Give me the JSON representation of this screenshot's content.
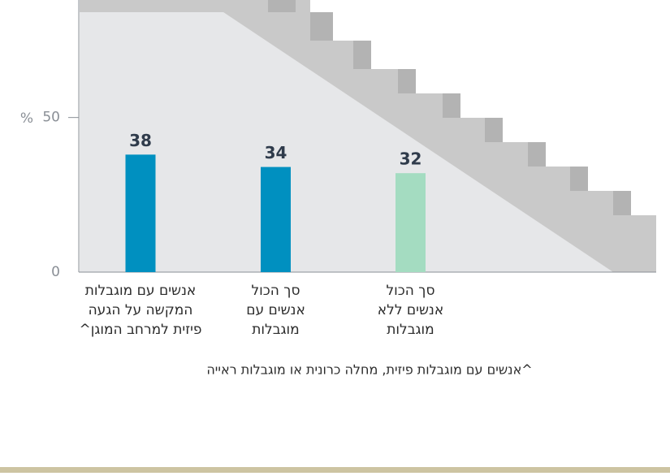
{
  "chart_data": {
    "type": "bar",
    "y_unit": "%",
    "categories": [
      [
        "אנשים עם מוגבלות",
        "המקשה על הגעה",
        "פיזית למרחב המוגן^"
      ],
      [
        "סך הכול",
        "אנשים עם",
        "מוגבלות"
      ],
      [
        "סך הכול",
        "אנשים ללא",
        "מוגבלות"
      ]
    ],
    "values": [
      38,
      34,
      32
    ],
    "colors": [
      "#0090c0",
      "#0090c0",
      "#a4dcc1"
    ],
    "ylim": [
      0,
      88
    ],
    "yticks": [
      0,
      50
    ],
    "footnote": "^אנשים עם מוגבלות פיזית, מחלה כרונית או מוגבלות ראייה"
  }
}
